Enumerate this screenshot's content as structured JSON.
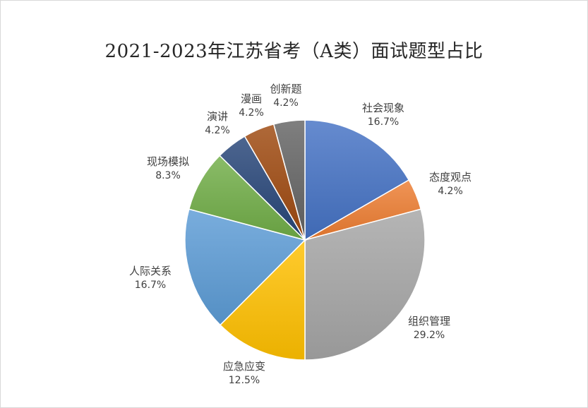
{
  "chart_data": {
    "type": "pie",
    "title": "2021-2023年江苏省考（A类）面试题型占比",
    "slices": [
      {
        "label": "社会现象",
        "value": 16.7,
        "pct_label": "16.7%",
        "color": "#4472c4"
      },
      {
        "label": "态度观点",
        "value": 4.2,
        "pct_label": "4.2%",
        "color": "#ed7d31"
      },
      {
        "label": "组织管理",
        "value": 29.2,
        "pct_label": "29.2%",
        "color": "#a5a5a5"
      },
      {
        "label": "应急应变",
        "value": 12.5,
        "pct_label": "12.5%",
        "color": "#ffc000"
      },
      {
        "label": "人际关系",
        "value": 16.7,
        "pct_label": "16.7%",
        "color": "#5b9bd5"
      },
      {
        "label": "现场模拟",
        "value": 8.3,
        "pct_label": "8.3%",
        "color": "#70ad47"
      },
      {
        "label": "演讲",
        "value": 4.2,
        "pct_label": "4.2%",
        "color": "#264478"
      },
      {
        "label": "漫画",
        "value": 4.2,
        "pct_label": "4.2%",
        "color": "#9e480e"
      },
      {
        "label": "创新题",
        "value": 4.2,
        "pct_label": "4.2%",
        "color": "#636363"
      }
    ],
    "legend": "none"
  }
}
